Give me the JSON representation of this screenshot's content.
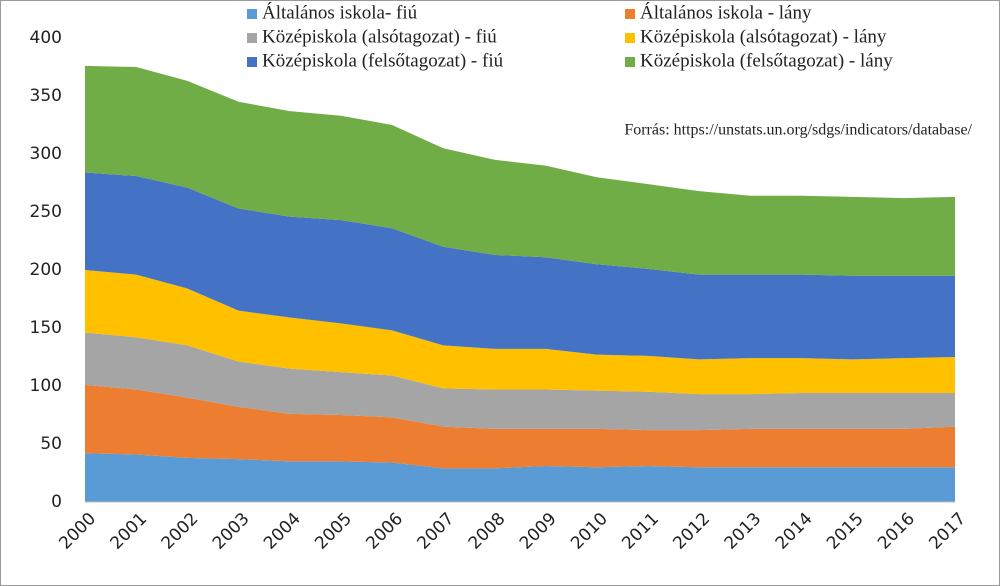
{
  "chart_data": {
    "type": "stacked_area",
    "annotation": "Forrás: https://unstats.un.org/sdgs/indicators/database/",
    "categories": [
      "2000",
      "2001",
      "2002",
      "2003",
      "2004",
      "2005",
      "2006",
      "2007",
      "2008",
      "2009",
      "2010",
      "2011",
      "2012",
      "2013",
      "2014",
      "2015",
      "2016",
      "2017"
    ],
    "series": [
      {
        "name": "Általános iskola- fiú",
        "color": "#5b9bd5",
        "values": [
          42,
          41,
          38,
          37,
          35,
          35,
          34,
          29,
          29,
          31,
          30,
          31,
          30,
          30,
          30,
          30,
          30,
          30
        ]
      },
      {
        "name": "Általános iskola - lány",
        "color": "#ed7d31",
        "values": [
          59,
          56,
          52,
          45,
          41,
          40,
          39,
          36,
          34,
          32,
          33,
          31,
          32,
          33,
          33,
          33,
          33,
          35
        ]
      },
      {
        "name": "Középiskola (alsótagozat) - fiú",
        "color": "#a5a5a5",
        "values": [
          45,
          45,
          45,
          39,
          39,
          37,
          36,
          33,
          34,
          34,
          33,
          33,
          31,
          30,
          31,
          31,
          31,
          29
        ]
      },
      {
        "name": "Középiskola (alsótagozat) - lány",
        "color": "#ffc000",
        "values": [
          54,
          54,
          49,
          44,
          44,
          42,
          39,
          37,
          35,
          35,
          31,
          31,
          30,
          31,
          30,
          29,
          30,
          31
        ]
      },
      {
        "name": "Középiskola (felsőtagozat) - fiú",
        "color": "#4472c4",
        "values": [
          84,
          85,
          87,
          88,
          87,
          89,
          88,
          85,
          81,
          79,
          78,
          75,
          73,
          72,
          72,
          72,
          71,
          70
        ]
      },
      {
        "name": "Középiskola (felsőtagozat) - lány",
        "color": "#70ad47",
        "values": [
          92,
          94,
          92,
          92,
          91,
          90,
          89,
          85,
          82,
          79,
          75,
          73,
          72,
          68,
          68,
          68,
          67,
          68
        ]
      }
    ],
    "ylim": [
      0,
      400
    ],
    "yticks": [
      0,
      50,
      100,
      150,
      200,
      250,
      300,
      350,
      400
    ],
    "grid": false
  }
}
